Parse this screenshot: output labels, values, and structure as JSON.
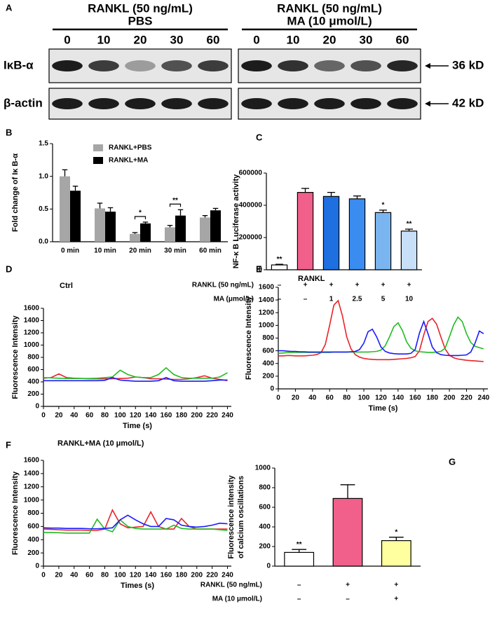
{
  "blot": {
    "panel": "A",
    "groups": [
      {
        "treatment": "RANKL (50 ng/mL)",
        "condition": "PBS",
        "times": [
          0,
          10,
          20,
          30,
          60
        ]
      },
      {
        "treatment": "RANKL (50 ng/mL)",
        "condition": "MA (10 μmol/L)",
        "times": [
          0,
          10,
          20,
          30,
          60
        ]
      }
    ],
    "rows": [
      {
        "protein": "IκB-α",
        "size": "36 kD"
      },
      {
        "protein": "β-actin",
        "size": "42 kD"
      }
    ]
  },
  "chart_data": [
    {
      "type": "bar",
      "panel": "B",
      "ylabel": [
        "Fold change of Iκ B-α"
      ],
      "categories": [
        "0 min",
        "10 min",
        "20 min",
        "30 min",
        "60 min"
      ],
      "series": [
        {
          "name": "RANKL+PBS",
          "color": "#a6a6a6",
          "values": [
            1.0,
            0.51,
            0.12,
            0.22,
            0.37
          ],
          "errors": [
            0.1,
            0.08,
            0.02,
            0.03,
            0.03
          ]
        },
        {
          "name": "RANKL+MA",
          "color": "#000000",
          "values": [
            0.78,
            0.46,
            0.28,
            0.4,
            0.48
          ],
          "errors": [
            0.07,
            0.06,
            0.02,
            0.09,
            0.03
          ]
        }
      ],
      "significance": [
        {
          "category": "20 min",
          "text": "*"
        },
        {
          "category": "30 min",
          "text": "**"
        }
      ],
      "ylim": [
        0,
        1.5
      ],
      "yticks": [
        {
          "value": 0,
          "label": "0.0"
        },
        0.5,
        {
          "value": 1,
          "label": "1.0"
        },
        1.5
      ]
    },
    {
      "type": "bar",
      "panel": "C",
      "ylabel": [
        "NF-κ B Luciferase activity"
      ],
      "values": [
        30000,
        480000,
        455000,
        440000,
        355000,
        240000
      ],
      "errors": [
        4000,
        25000,
        25000,
        18000,
        15000,
        12000
      ],
      "colors": [
        "#ffffff",
        "#f0608a",
        "#1e6fe0",
        "#3b8cf0",
        "#7ab5f0",
        "#c7e0f8"
      ],
      "significance": [
        "**",
        null,
        null,
        null,
        "*",
        "**"
      ],
      "conditions": [
        {
          "label": "RANKL (50 ng/mL)",
          "values": [
            "–",
            "+",
            "+",
            "+",
            "+",
            "+"
          ]
        },
        {
          "label": "MA (μmol/L)",
          "values": [
            "–",
            "–",
            "1",
            "2.5",
            "5",
            "10"
          ]
        }
      ],
      "ylim": [
        0,
        600000
      ],
      "yticks": [
        0,
        200000,
        400000,
        600000
      ]
    },
    {
      "type": "line",
      "panel": "D",
      "title": "Ctrl",
      "xlabel": "Time (s)",
      "ylabel": [
        "Fluorescence Intensity"
      ],
      "x": [
        0,
        10,
        20,
        30,
        40,
        50,
        60,
        70,
        80,
        90,
        100,
        110,
        120,
        130,
        140,
        150,
        160,
        170,
        180,
        190,
        200,
        210,
        220,
        230,
        240
      ],
      "series": [
        {
          "color": "#e8242a",
          "values": [
            460,
            470,
            530,
            470,
            460,
            455,
            450,
            450,
            450,
            450,
            455,
            460,
            480,
            470,
            450,
            450,
            445,
            440,
            440,
            450,
            470,
            500,
            460,
            440,
            420
          ]
        },
        {
          "color": "#22bb22",
          "values": [
            470,
            465,
            460,
            455,
            455,
            455,
            455,
            460,
            470,
            480,
            590,
            520,
            480,
            470,
            470,
            520,
            630,
            520,
            470,
            460,
            460,
            460,
            460,
            480,
            550
          ]
        },
        {
          "color": "#1a1aff",
          "values": [
            420,
            420,
            420,
            420,
            420,
            420,
            420,
            420,
            425,
            470,
            430,
            420,
            410,
            410,
            410,
            420,
            470,
            420,
            410,
            410,
            410,
            410,
            420,
            430,
            430
          ]
        }
      ],
      "xlim": [
        0,
        245
      ],
      "xticks": [
        0,
        20,
        40,
        60,
        80,
        100,
        120,
        140,
        160,
        180,
        200,
        220,
        240
      ],
      "ylim": [
        0,
        1600
      ],
      "yticks": [
        0,
        200,
        400,
        600,
        800,
        1000,
        1200,
        1400,
        1600
      ]
    },
    {
      "type": "line",
      "panel": "E",
      "title": "RANKL",
      "xlabel": "Time (s)",
      "ylabel": [
        "Fluorescence Intensity"
      ],
      "x": [
        0,
        5,
        10,
        15,
        20,
        25,
        30,
        35,
        40,
        45,
        50,
        55,
        60,
        65,
        70,
        75,
        80,
        85,
        90,
        95,
        100,
        105,
        110,
        115,
        120,
        125,
        130,
        135,
        140,
        145,
        150,
        155,
        160,
        165,
        170,
        175,
        180,
        185,
        190,
        195,
        200,
        205,
        210,
        215,
        220,
        225,
        230,
        235,
        240
      ],
      "series": [
        {
          "color": "#e8242a",
          "values": [
            520,
            520,
            525,
            525,
            520,
            520,
            520,
            525,
            530,
            540,
            570,
            700,
            1000,
            1320,
            1390,
            1150,
            820,
            630,
            540,
            500,
            480,
            470,
            465,
            460,
            460,
            460,
            460,
            465,
            470,
            475,
            480,
            490,
            510,
            600,
            850,
            1060,
            1110,
            1020,
            820,
            630,
            530,
            490,
            470,
            460,
            450,
            445,
            440,
            435,
            430
          ]
        },
        {
          "color": "#22bb22",
          "values": [
            560,
            565,
            570,
            575,
            575,
            575,
            575,
            575,
            575,
            575,
            575,
            575,
            575,
            580,
            580,
            580,
            580,
            580,
            580,
            580,
            580,
            580,
            585,
            590,
            610,
            680,
            820,
            980,
            1040,
            920,
            740,
            640,
            600,
            585,
            580,
            575,
            575,
            580,
            590,
            640,
            820,
            1010,
            1130,
            1060,
            870,
            730,
            670,
            650,
            630
          ]
        },
        {
          "color": "#1a1aff",
          "values": [
            600,
            600,
            595,
            590,
            590,
            585,
            585,
            580,
            580,
            580,
            580,
            580,
            580,
            580,
            580,
            580,
            580,
            585,
            590,
            620,
            720,
            900,
            940,
            820,
            660,
            590,
            565,
            555,
            550,
            550,
            550,
            560,
            620,
            880,
            1060,
            870,
            660,
            570,
            540,
            530,
            525,
            525,
            525,
            530,
            535,
            580,
            720,
            910,
            870
          ]
        }
      ],
      "xlim": [
        0,
        245
      ],
      "xticks": [
        0,
        20,
        40,
        60,
        80,
        100,
        120,
        140,
        160,
        180,
        200,
        220,
        240
      ],
      "ylim": [
        0,
        1600
      ],
      "yticks": [
        0,
        200,
        400,
        600,
        800,
        1000,
        1200,
        1400,
        1600
      ]
    },
    {
      "type": "line",
      "panel": "F",
      "title": "RANKL+MA (10 μmol/L)",
      "xlabel": "Times (s)",
      "ylabel": [
        "Fluorescence Intensity"
      ],
      "x": [
        0,
        10,
        20,
        30,
        40,
        50,
        60,
        70,
        80,
        90,
        100,
        110,
        120,
        130,
        140,
        150,
        160,
        170,
        180,
        190,
        200,
        210,
        220,
        230,
        240
      ],
      "series": [
        {
          "color": "#e8242a",
          "values": [
            560,
            555,
            550,
            545,
            545,
            545,
            540,
            540,
            560,
            850,
            640,
            580,
            590,
            600,
            820,
            600,
            560,
            560,
            720,
            600,
            560,
            560,
            560,
            560,
            560
          ]
        },
        {
          "color": "#22bb22",
          "values": [
            510,
            510,
            505,
            500,
            500,
            500,
            500,
            710,
            560,
            520,
            700,
            600,
            570,
            560,
            560,
            560,
            560,
            620,
            570,
            560,
            560,
            560,
            560,
            550,
            540
          ]
        },
        {
          "color": "#1a1aff",
          "values": [
            580,
            575,
            575,
            570,
            570,
            570,
            565,
            565,
            570,
            580,
            700,
            770,
            700,
            640,
            600,
            600,
            720,
            700,
            620,
            600,
            590,
            600,
            620,
            650,
            640
          ]
        }
      ],
      "xlim": [
        0,
        245
      ],
      "xticks": [
        0,
        20,
        40,
        60,
        80,
        100,
        120,
        140,
        160,
        180,
        200,
        220,
        240
      ],
      "ylim": [
        0,
        1600
      ],
      "yticks": [
        0,
        200,
        400,
        600,
        800,
        1000,
        1200,
        1400,
        1600
      ]
    },
    {
      "type": "bar",
      "panel": "G",
      "ylabel": [
        "Fluorescence intensity",
        "of calcium oscillations"
      ],
      "values": [
        140,
        690,
        260
      ],
      "errors": [
        30,
        140,
        35
      ],
      "colors": [
        "#ffffff",
        "#f0608a",
        "#ffffa0"
      ],
      "significance": [
        "**",
        null,
        "*"
      ],
      "conditions": [
        {
          "label": "RANKL (50 ng/mL)",
          "values": [
            "–",
            "+",
            "+"
          ]
        },
        {
          "label": "MA (10 μmol/L)",
          "values": [
            "–",
            "–",
            "+"
          ]
        }
      ],
      "ylim": [
        0,
        1000
      ],
      "yticks": [
        0,
        200,
        400,
        600,
        800,
        1000
      ]
    }
  ]
}
